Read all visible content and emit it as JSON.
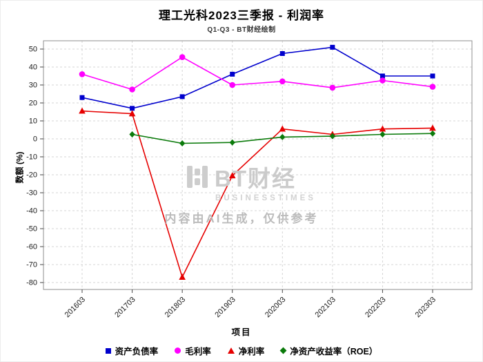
{
  "chart_data": {
    "type": "line",
    "title": "理工光科2023三季报 - 利润率",
    "subtitle": "Q1-Q3 - BT财经绘制",
    "xlabel": "项目",
    "ylabel": "数额 (%)",
    "categories": [
      "201603",
      "201703",
      "201803",
      "201903",
      "202003",
      "202103",
      "202203",
      "202303"
    ],
    "ylim": [
      -80,
      50
    ],
    "yticks": [
      50,
      40,
      30,
      20,
      10,
      0,
      -10,
      -20,
      -30,
      -40,
      -50,
      -60,
      -70,
      -80
    ],
    "grid": true,
    "legend_position": "bottom",
    "series": [
      {
        "name": "资产负债率",
        "marker": "square",
        "color": "#0000cd",
        "values": [
          23,
          17,
          23.5,
          36,
          47.5,
          51,
          35,
          35
        ]
      },
      {
        "name": "毛利率",
        "marker": "circle",
        "color": "#ff00ff",
        "values": [
          36,
          27.5,
          45.5,
          30,
          32,
          28.5,
          32.5,
          29
        ]
      },
      {
        "name": "净利率",
        "marker": "triangle",
        "color": "#e60000",
        "values": [
          15.5,
          14,
          -77,
          -20.5,
          5.5,
          2.5,
          5.5,
          6
        ]
      },
      {
        "name": "净资产收益率（ROE）",
        "marker": "diamond",
        "color": "#0a7a0a",
        "values": [
          null,
          2.5,
          -2.5,
          -2,
          1,
          1.5,
          2.5,
          3
        ]
      }
    ],
    "watermark": {
      "brand": "BT财经",
      "brand_sub": "BUSINESSTIMES",
      "notice": "内容由AI生成，仅供参考"
    }
  }
}
